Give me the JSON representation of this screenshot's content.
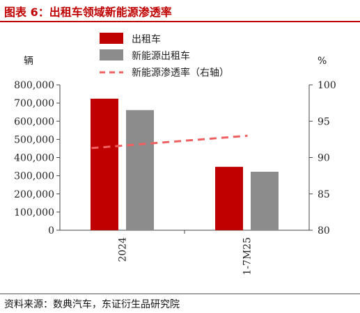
{
  "header": {
    "title": "图表 6：出租车领域新能源渗透率"
  },
  "footer": {
    "source": "资料来源：数典汽车，东证衍生品研究院"
  },
  "chart_data": {
    "type": "bar",
    "categories": [
      "2024",
      "1-7M25"
    ],
    "series": [
      {
        "name": "出租车",
        "type": "bar",
        "axis": "left",
        "color": "#c00000",
        "values": [
          724000,
          349000
        ]
      },
      {
        "name": "新能源出租车",
        "type": "bar",
        "axis": "left",
        "color": "#8c8c8c",
        "values": [
          661000,
          322000
        ]
      },
      {
        "name": "新能源渗透率（右轴）",
        "type": "line",
        "axis": "right",
        "color": "#f06060",
        "style": "dashed",
        "values": [
          91.3,
          93.0
        ]
      }
    ],
    "left_axis": {
      "unit": "辆",
      "ylim": [
        0,
        800000
      ],
      "ticks": [
        0,
        100000,
        200000,
        300000,
        400000,
        500000,
        600000,
        700000,
        800000
      ],
      "tick_labels": [
        "0",
        "100,000",
        "200,000",
        "300,000",
        "400,000",
        "500,000",
        "600,000",
        "700,000",
        "800,000"
      ]
    },
    "right_axis": {
      "unit": "%",
      "ylim": [
        80,
        100
      ],
      "ticks": [
        80,
        85,
        90,
        95,
        100
      ],
      "tick_labels": [
        "80",
        "85",
        "90",
        "95",
        "100"
      ]
    },
    "legend_placement": "top-center",
    "grid": false
  }
}
